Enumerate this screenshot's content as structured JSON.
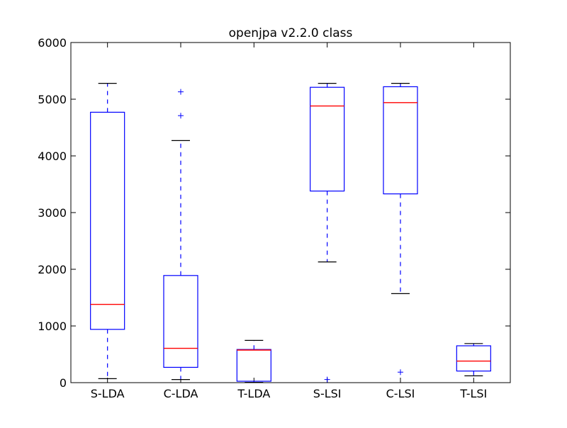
{
  "chart_data": {
    "type": "boxplot",
    "title": "openjpa v2.2.0 class",
    "xlabel": "",
    "ylabel": "",
    "ylim": [
      0,
      6000
    ],
    "yticks": [
      0,
      1000,
      2000,
      3000,
      4000,
      5000,
      6000
    ],
    "grid": false,
    "categories": [
      "S-LDA",
      "C-LDA",
      "T-LDA",
      "S-LSI",
      "C-LSI",
      "T-LSI"
    ],
    "boxes": [
      {
        "label": "S-LDA",
        "whisker_low": 70,
        "q1": 940,
        "median": 1380,
        "q3": 4770,
        "whisker_high": 5280,
        "outliers": []
      },
      {
        "label": "C-LDA",
        "whisker_low": 55,
        "q1": 270,
        "median": 605,
        "q3": 1890,
        "whisker_high": 4270,
        "outliers": [
          4710,
          5130
        ]
      },
      {
        "label": "T-LDA",
        "whisker_low": 5,
        "q1": 25,
        "median": 575,
        "q3": 585,
        "whisker_high": 745,
        "outliers": []
      },
      {
        "label": "S-LSI",
        "whisker_low": 2130,
        "q1": 3380,
        "median": 4880,
        "q3": 5210,
        "whisker_high": 5280,
        "outliers": [
          55
        ]
      },
      {
        "label": "C-LSI",
        "whisker_low": 1570,
        "q1": 3330,
        "median": 4940,
        "q3": 5220,
        "whisker_high": 5280,
        "outliers": [
          185
        ]
      },
      {
        "label": "T-LSI",
        "whisker_low": 120,
        "q1": 205,
        "median": 380,
        "q3": 650,
        "whisker_high": 690,
        "outliers": []
      }
    ],
    "colors": {
      "box": "#0000ff",
      "median": "#ff0000",
      "whisker": "#0000ff",
      "cap": "#000000",
      "outlier": "#0000ff",
      "axes": "#000000"
    }
  }
}
